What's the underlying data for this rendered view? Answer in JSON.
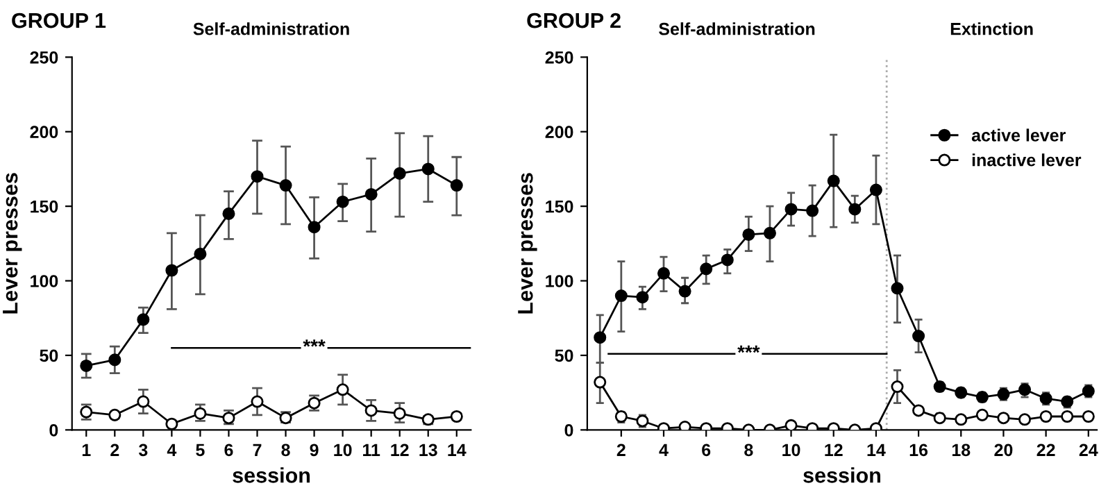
{
  "chart_data": [
    {
      "type": "line",
      "title": "GROUP 1",
      "subtitle": "Self-administration",
      "xlabel": "session",
      "ylabel": "Lever presses",
      "x": [
        1,
        2,
        3,
        4,
        5,
        6,
        7,
        8,
        9,
        10,
        11,
        12,
        13,
        14
      ],
      "xlim": [
        0.5,
        14.5
      ],
      "xticks": [
        1,
        2,
        3,
        4,
        5,
        6,
        7,
        8,
        9,
        10,
        11,
        12,
        13,
        14
      ],
      "ylim": [
        0,
        250
      ],
      "yticks": [
        0,
        50,
        100,
        150,
        200,
        250
      ],
      "marker": "circle",
      "grid": false,
      "legend": false,
      "series": [
        {
          "color": "#000000",
          "values": [
            43,
            47,
            74,
            107,
            118,
            145,
            170,
            164,
            136,
            153,
            158,
            172,
            175,
            164
          ],
          "errors": [
            [
              35,
              51
            ],
            [
              38,
              56
            ],
            [
              65,
              82
            ],
            [
              81,
              132
            ],
            [
              91,
              144
            ],
            [
              128,
              160
            ],
            [
              145,
              194
            ],
            [
              138,
              190
            ],
            [
              115,
              156
            ],
            [
              140,
              165
            ],
            [
              133,
              182
            ],
            [
              143,
              199
            ],
            [
              153,
              197
            ],
            [
              144,
              183
            ]
          ]
        },
        {
          "color": "#ffffff",
          "values": [
            12,
            10,
            19,
            4,
            11,
            8,
            19,
            8,
            18,
            27,
            13,
            11,
            7,
            9
          ],
          "errors": [
            [
              7,
              17
            ],
            [
              8,
              11
            ],
            [
              11,
              27
            ],
            null,
            [
              6,
              17
            ],
            [
              4,
              13
            ],
            [
              10,
              28
            ],
            [
              5,
              12
            ],
            [
              13,
              23
            ],
            [
              17,
              37
            ],
            [
              6,
              20
            ],
            [
              5,
              18
            ],
            [
              4,
              9
            ],
            [
              7,
              11
            ]
          ]
        }
      ],
      "annotations": [
        {
          "text": "***",
          "x": 9,
          "y": 55
        }
      ]
    },
    {
      "type": "line",
      "title": "GROUP 2",
      "subtitle": "Self-administration",
      "xlabel": "session",
      "ylabel": "Lever presses",
      "x": [
        1,
        2,
        3,
        4,
        5,
        6,
        7,
        8,
        9,
        10,
        11,
        12,
        13,
        14,
        15,
        16,
        17,
        18,
        19,
        20,
        21,
        22,
        23,
        24
      ],
      "xlim": [
        0.4,
        24.4
      ],
      "xticks": [
        2,
        4,
        6,
        8,
        10,
        12,
        14,
        16,
        18,
        20,
        22,
        24
      ],
      "ylim": [
        0,
        250
      ],
      "yticks": [
        0,
        50,
        100,
        150,
        200,
        250
      ],
      "marker": "circle",
      "grid": false,
      "legend": "top right",
      "ref_lines": [
        {
          "axis": "x",
          "value": 14.5,
          "color": "#aaaaaa",
          "line_style": "dotted"
        }
      ],
      "series": [
        {
          "name": "active lever",
          "color": "#000000",
          "values": [
            62,
            90,
            89,
            105,
            93,
            108,
            114,
            131,
            132,
            148,
            147,
            167,
            148,
            161,
            95,
            63,
            29,
            25,
            22,
            24,
            27,
            21,
            19,
            26
          ],
          "errors": [
            [
              45,
              77
            ],
            [
              66,
              113
            ],
            [
              81,
              96
            ],
            [
              93,
              116
            ],
            [
              85,
              102
            ],
            [
              98,
              117
            ],
            [
              105,
              121
            ],
            [
              120,
              143
            ],
            [
              113,
              150
            ],
            [
              137,
              159
            ],
            [
              130,
              164
            ],
            [
              136,
              198
            ],
            [
              139,
              157
            ],
            [
              138,
              184
            ],
            [
              72,
              117
            ],
            [
              52,
              74
            ],
            [
              26,
              32
            ],
            [
              22,
              28
            ],
            [
              19,
              25
            ],
            [
              20,
              28
            ],
            [
              22,
              31
            ],
            [
              17,
              25
            ],
            [
              15,
              22
            ],
            [
              22,
              30
            ]
          ]
        },
        {
          "name": "inactive lever",
          "color": "#ffffff",
          "values": [
            32,
            9,
            6,
            1,
            2,
            1,
            1,
            0,
            0,
            3,
            1,
            1,
            0,
            1,
            29,
            13,
            8,
            7,
            10,
            8,
            7,
            9,
            9,
            9
          ],
          "errors": [
            [
              18,
              45
            ],
            [
              5,
              12
            ],
            [
              2,
              10
            ],
            null,
            null,
            null,
            null,
            null,
            null,
            null,
            null,
            null,
            null,
            null,
            [
              18,
              40
            ],
            [
              11,
              14
            ],
            [
              6,
              11
            ],
            [
              5,
              9
            ],
            [
              8,
              12
            ],
            [
              6,
              10
            ],
            [
              5,
              9
            ],
            [
              7,
              11
            ],
            [
              7,
              11
            ],
            [
              7,
              11
            ]
          ]
        }
      ],
      "annotations": [
        "Extinction",
        {
          "text": "***",
          "x": 8,
          "y": 51
        }
      ]
    }
  ]
}
